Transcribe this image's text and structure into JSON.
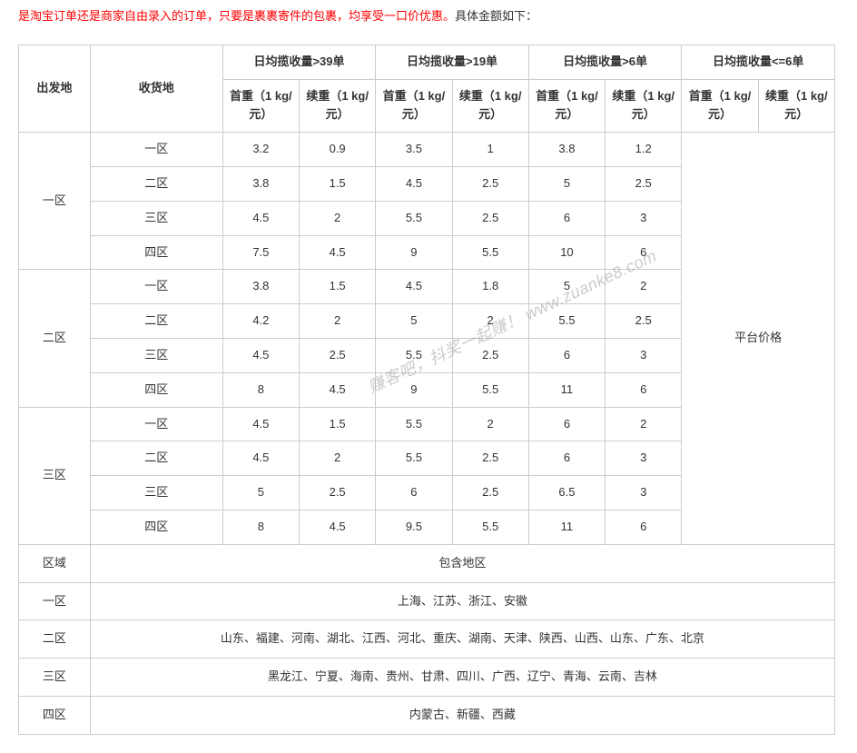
{
  "intro": {
    "red_part": "是淘宝订单还是商家自由录入的订单，只要是裹裹寄件的包裹，均享受一口价优惠。",
    "black_part": "具体金额如下："
  },
  "watermark": "赚客吧，抖奖一起赚！ www.zuanke8.com",
  "table": {
    "headers": {
      "origin": "出发地",
      "dest": "收货地",
      "tier1": "日均揽收量>39单",
      "tier2": "日均揽收量>19单",
      "tier3": "日均揽收量>6单",
      "tier4": "日均揽收量<=6单",
      "first_weight": "首重（1 kg/元）",
      "cont_weight": "续重（1 kg/元）"
    },
    "origins": [
      {
        "name": "一区",
        "rows": [
          {
            "dest": "一区",
            "values": [
              "3.2",
              "0.9",
              "3.5",
              "1",
              "3.8",
              "1.2"
            ]
          },
          {
            "dest": "二区",
            "values": [
              "3.8",
              "1.5",
              "4.5",
              "2.5",
              "5",
              "2.5"
            ]
          },
          {
            "dest": "三区",
            "values": [
              "4.5",
              "2",
              "5.5",
              "2.5",
              "6",
              "3"
            ]
          },
          {
            "dest": "四区",
            "values": [
              "7.5",
              "4.5",
              "9",
              "5.5",
              "10",
              "6"
            ]
          }
        ]
      },
      {
        "name": "二区",
        "rows": [
          {
            "dest": "一区",
            "values": [
              "3.8",
              "1.5",
              "4.5",
              "1.8",
              "5",
              "2"
            ]
          },
          {
            "dest": "二区",
            "values": [
              "4.2",
              "2",
              "5",
              "2",
              "5.5",
              "2.5"
            ]
          },
          {
            "dest": "三区",
            "values": [
              "4.5",
              "2.5",
              "5.5",
              "2.5",
              "6",
              "3"
            ]
          },
          {
            "dest": "四区",
            "values": [
              "8",
              "4.5",
              "9",
              "5.5",
              "11",
              "6"
            ]
          }
        ]
      },
      {
        "name": "三区",
        "rows": [
          {
            "dest": "一区",
            "values": [
              "4.5",
              "1.5",
              "5.5",
              "2",
              "6",
              "2"
            ]
          },
          {
            "dest": "二区",
            "values": [
              "4.5",
              "2",
              "5.5",
              "2.5",
              "6",
              "3"
            ]
          },
          {
            "dest": "三区",
            "values": [
              "5",
              "2.5",
              "6",
              "2.5",
              "6.5",
              "3"
            ]
          },
          {
            "dest": "四区",
            "values": [
              "8",
              "4.5",
              "9.5",
              "5.5",
              "11",
              "6"
            ]
          }
        ]
      }
    ],
    "tier4_cell": "平台价格",
    "region_defs": {
      "header_left": "区域",
      "header_right": "包含地区",
      "rows": [
        {
          "zone": "一区",
          "areas": "上海、江苏、浙江、安徽"
        },
        {
          "zone": "二区",
          "areas": "山东、福建、河南、湖北、江西、河北、重庆、湖南、天津、陕西、山西、山东、广东、北京"
        },
        {
          "zone": "三区",
          "areas": "黑龙江、宁夏、海南、贵州、甘肃、四川、广西、辽宁、青海、云南、吉林"
        },
        {
          "zone": "四区",
          "areas": "内蒙古、新疆、西藏"
        }
      ]
    }
  }
}
